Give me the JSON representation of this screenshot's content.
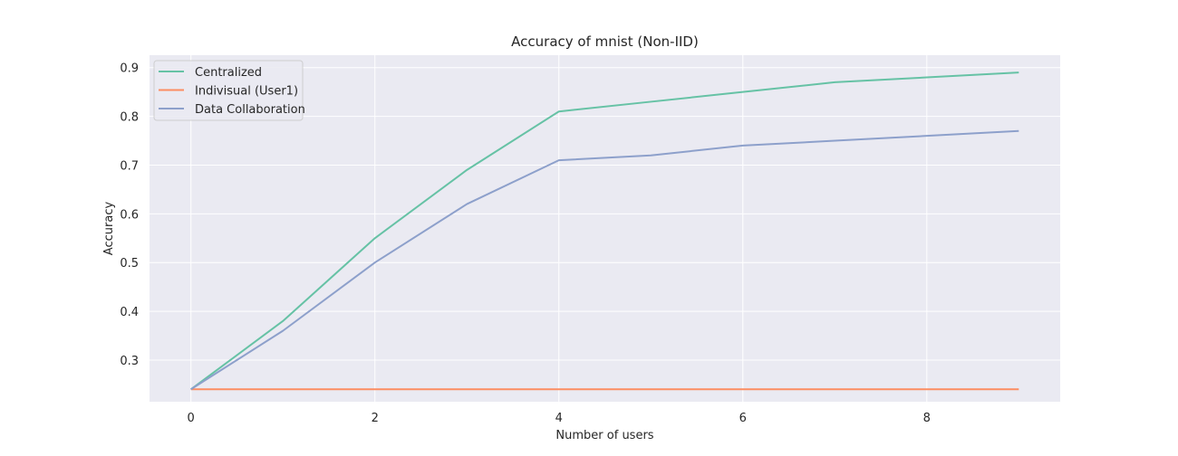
{
  "chart_data": {
    "type": "line",
    "title": "Accuracy of mnist (Non-IID)",
    "xlabel": "Number of users",
    "ylabel": "Accuracy",
    "xlim": [
      -0.45,
      9.45
    ],
    "ylim": [
      0.2145,
      0.9255
    ],
    "xticks": [
      0,
      2,
      4,
      6,
      8
    ],
    "yticks": [
      0.3,
      0.4,
      0.5,
      0.6,
      0.7,
      0.8,
      0.9
    ],
    "grid": true,
    "legend_position": "top-left",
    "x": [
      0,
      1,
      2,
      3,
      4,
      5,
      6,
      7,
      8,
      9
    ],
    "series": [
      {
        "name": "Centralized",
        "color": "#66c2a5",
        "values": [
          0.24,
          0.38,
          0.55,
          0.69,
          0.81,
          0.83,
          0.85,
          0.87,
          0.88,
          0.89
        ]
      },
      {
        "name": "Indivisual (User1)",
        "color": "#fc8d62",
        "values": [
          0.24,
          0.24,
          0.24,
          0.24,
          0.24,
          0.24,
          0.24,
          0.24,
          0.24,
          0.24
        ]
      },
      {
        "name": "Data Collaboration",
        "color": "#8da0cb",
        "values": [
          0.24,
          0.36,
          0.5,
          0.62,
          0.71,
          0.72,
          0.74,
          0.75,
          0.76,
          0.77
        ]
      }
    ]
  },
  "colors": {
    "plot_background": "#eaeaf2",
    "grid": "#ffffff",
    "text": "#262626"
  }
}
